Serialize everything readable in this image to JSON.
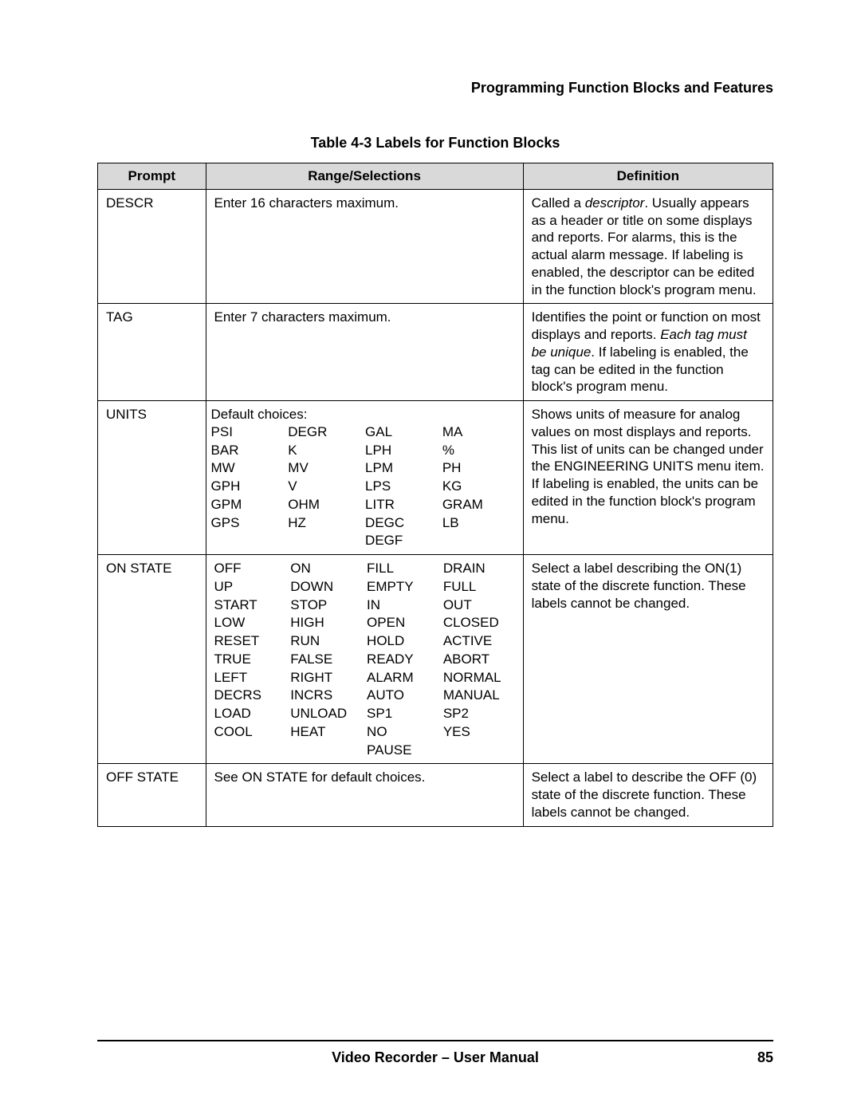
{
  "header": {
    "section": "Programming Function Blocks and Features"
  },
  "caption": "Table 4-3   Labels for Function Blocks",
  "table": {
    "columns": [
      "Prompt",
      "Range/Selections",
      "Definition"
    ],
    "rows": [
      {
        "prompt": "DESCR",
        "range_text": "Enter 16 characters maximum.",
        "definition_pre": "Called a ",
        "definition_em": "descriptor",
        "definition_post": ".  Usually appears as a header or title on some displays and reports. For alarms, this is the actual alarm message.  If labeling is enabled, the descriptor can be edited in the function block's program menu."
      },
      {
        "prompt": "TAG",
        "range_text": "Enter 7 characters maximum.",
        "definition_pre": "Identifies the point or function on most displays and reports.  ",
        "definition_em": "Each tag must be unique",
        "definition_post": ".  If labeling is enabled, the tag can be edited in the function block's program menu."
      },
      {
        "prompt": "UNITS",
        "range_label": "Default choices:",
        "options": {
          "col1": [
            "PSI",
            "BAR",
            "MW",
            "GPH",
            "GPM",
            "GPS"
          ],
          "col2": [
            "DEGR",
            "K",
            "MV",
            "V",
            "OHM",
            "HZ"
          ],
          "col3": [
            "GAL",
            "LPH",
            "LPM",
            "LPS",
            "LITR",
            "DEGC",
            "DEGF"
          ],
          "col4": [
            "MA",
            "%",
            "PH",
            "KG",
            "GRAM",
            "LB"
          ]
        },
        "definition": "Shows units of measure for analog values on most displays and reports.  This list of units can be changed under the ENGINEERING UNITS menu item.  If labeling is enabled, the units can be edited in the function block's program menu."
      },
      {
        "prompt": "ON STATE",
        "options": {
          "col1": [
            "OFF",
            "UP",
            "START",
            "LOW",
            "RESET",
            "TRUE",
            "LEFT",
            "DECRS",
            "LOAD",
            "COOL"
          ],
          "col2": [
            "ON",
            "DOWN",
            "STOP",
            "HIGH",
            "RUN",
            "FALSE",
            "RIGHT",
            "INCRS",
            "UNLOAD",
            "HEAT"
          ],
          "col3": [
            "FILL",
            "EMPTY",
            "IN",
            "OPEN",
            "HOLD",
            "READY",
            "ALARM",
            "AUTO",
            "SP1",
            "NO",
            "PAUSE"
          ],
          "col4": [
            "DRAIN",
            "FULL",
            "OUT",
            "CLOSED",
            "ACTIVE",
            "ABORT",
            "NORMAL",
            "MANUAL",
            "SP2",
            "YES"
          ]
        },
        "definition": "Select a label describing the ON(1) state of the discrete function.  These labels cannot be changed."
      },
      {
        "prompt": "OFF STATE",
        "range_text": "See ON STATE for default choices.",
        "definition": "Select a label to describe the OFF (0) state of the discrete function.  These labels cannot be changed."
      }
    ]
  },
  "footer": {
    "title": "Video Recorder – User Manual",
    "page": "85"
  }
}
